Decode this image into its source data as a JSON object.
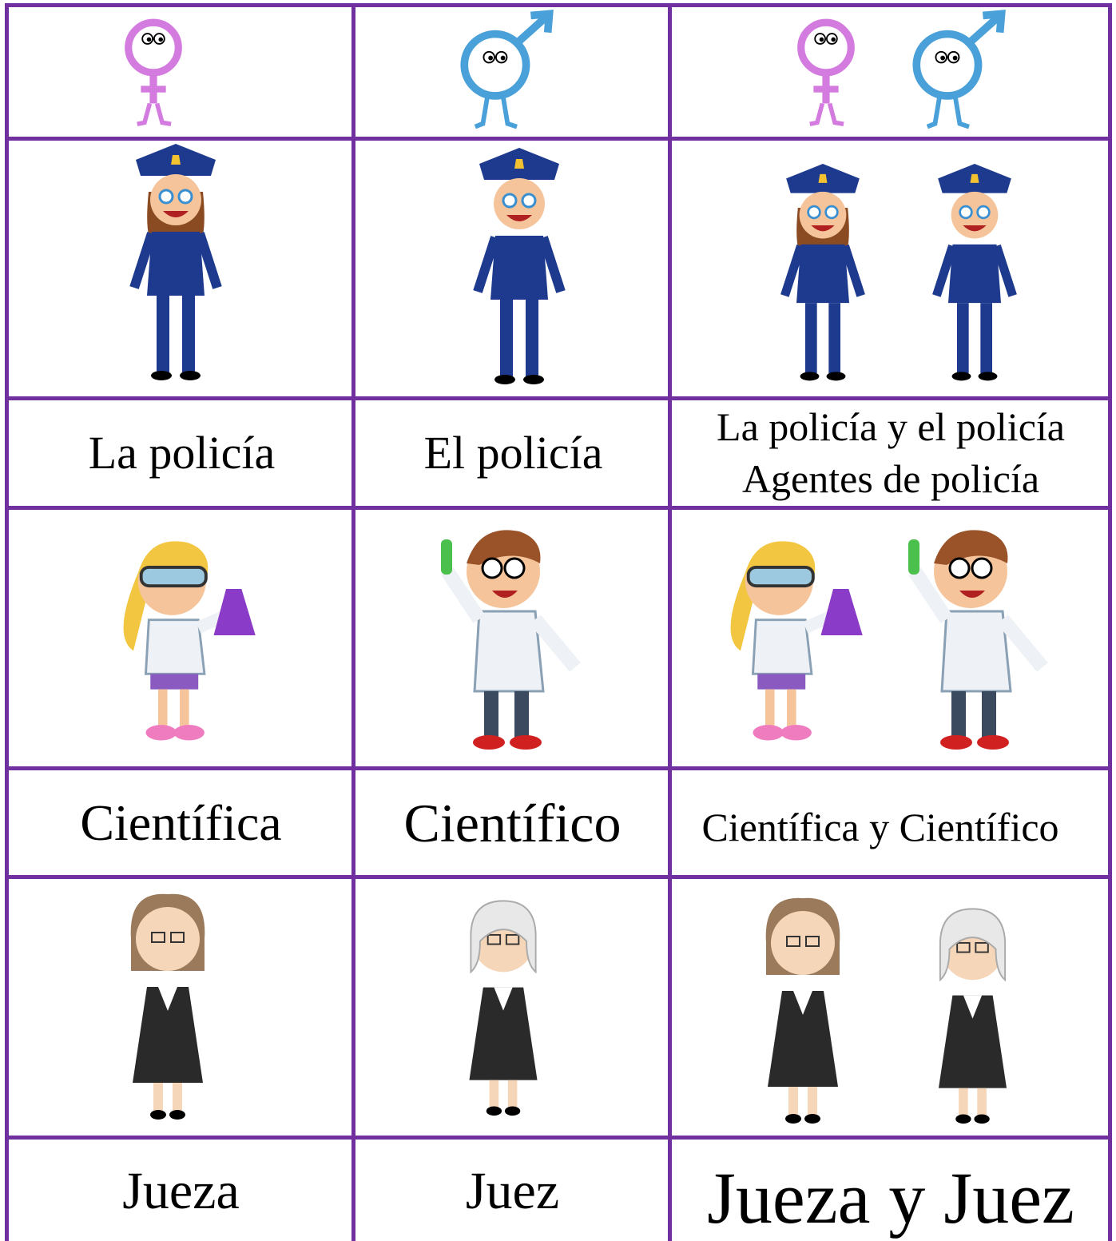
{
  "rows": [
    {
      "female": "La policía",
      "male": "El policía",
      "both": [
        "La policía y el policía",
        "Agentes de policía"
      ]
    },
    {
      "female": "Científica",
      "male": "Científico",
      "both": [
        "Científica y Científico"
      ]
    },
    {
      "female": "Jueza",
      "male": "Juez",
      "both": [
        "Jueza y Juez"
      ]
    }
  ]
}
